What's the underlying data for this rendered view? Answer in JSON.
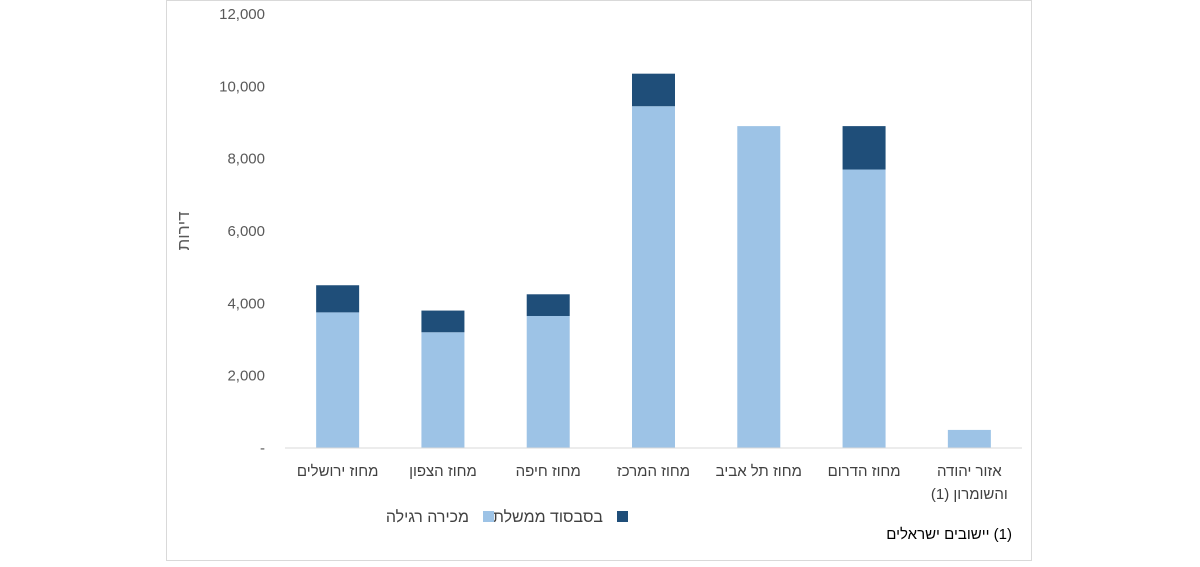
{
  "chart_data": {
    "type": "bar",
    "stacked": true,
    "ylabel": "דירות",
    "xlabel": "",
    "title": "",
    "ylim": [
      0,
      12000
    ],
    "yticks": [
      0,
      2000,
      4000,
      6000,
      8000,
      10000,
      12000
    ],
    "ytick_labels": [
      "-",
      "2,000",
      "4,000",
      "6,000",
      "8,000",
      "10,000",
      "12,000"
    ],
    "categories": [
      [
        "מחוז ירושלים"
      ],
      [
        "מחוז הצפון"
      ],
      [
        "מחוז חיפה"
      ],
      [
        "מחוז המרכז"
      ],
      [
        "מחוז תל אביב"
      ],
      [
        "מחוז הדרום"
      ],
      [
        "אזור יהודה",
        "והשומרון (1)"
      ]
    ],
    "series": [
      {
        "name": "מכירה רגילה",
        "color": "#9dc3e6",
        "values": [
          3750,
          3200,
          3650,
          9450,
          8900,
          7700,
          500
        ]
      },
      {
        "name": "בסבסוד ממשלתי",
        "color": "#1f4e79",
        "values": [
          750,
          600,
          600,
          900,
          0,
          1200,
          0
        ]
      }
    ],
    "legend_position": "bottom",
    "grid": false
  },
  "footnote": "(1) יישובים ישראלים"
}
